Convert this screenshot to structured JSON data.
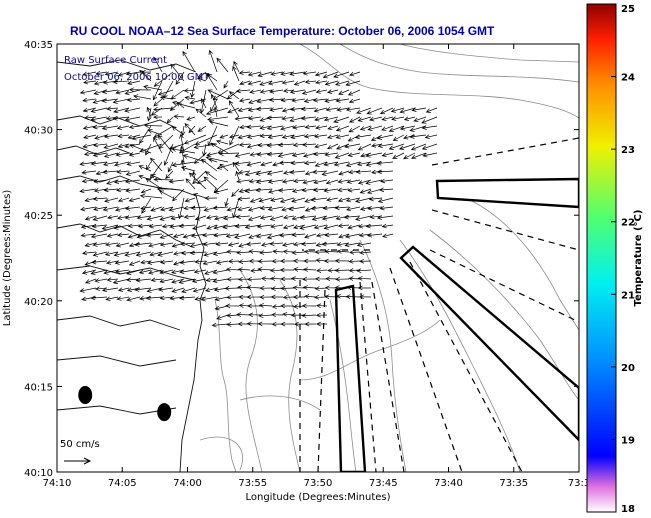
{
  "title": "RU COOL  NOAA–12  Sea Surface Temperature:  October 06, 2006 1054 GMT",
  "annotation_line1": "Raw Surface Current",
  "annotation_line2": "October 06, 2006 10:00 GMT",
  "scale_label": "50 cm/s",
  "colors": {
    "title": "#0000b0",
    "annotation": "#0a0a9a",
    "contour": "#8c8c8c",
    "coast": "#111111"
  },
  "chart_data": {
    "type": "map",
    "xlabel": "Longitude (Degrees:Minutes)",
    "ylabel": "Latitude (Degrees:Minutes)",
    "x_ticks": [
      "74:10",
      "74:05",
      "74:00",
      "73:55",
      "73:50",
      "73:45",
      "73:40",
      "73:35",
      "73:3"
    ],
    "y_ticks": [
      "40:35",
      "40:30",
      "40:25",
      "40:20",
      "40:15",
      "40:10"
    ],
    "x_range_minutes_west": [
      70,
      33
    ],
    "y_range_minutes_north": [
      10,
      35
    ],
    "colorbar": {
      "label": "Temperature (°C)",
      "ticks": [
        "25",
        "24",
        "23",
        "22",
        "21",
        "20",
        "19",
        "18"
      ],
      "range": [
        18,
        25
      ],
      "colormap": "jet"
    },
    "markers": [
      {
        "name": "dot-1",
        "lon_minutes_west": 68.0,
        "lat_minutes_north": 14.5
      },
      {
        "name": "dot-2",
        "lon_minutes_west": 62.4,
        "lat_minutes_north": 13.5
      }
    ]
  }
}
